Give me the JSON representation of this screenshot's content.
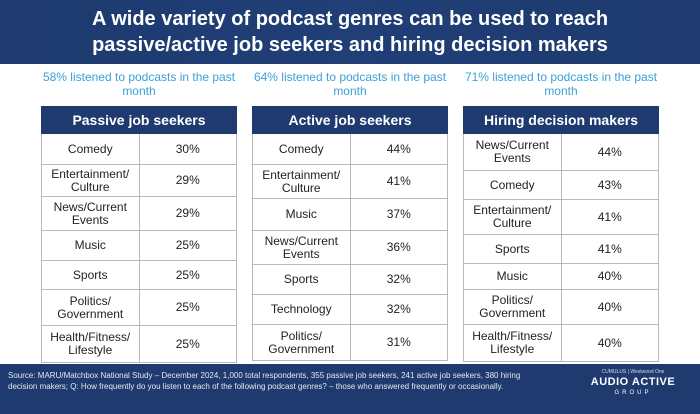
{
  "title_line1": "A wide variety of podcast genres can be used to reach",
  "title_line2": "passive/active job seekers and hiring decision makers",
  "chart_data": [
    {
      "type": "table",
      "subtitle": "58% listened to podcasts in the past month",
      "header": "Passive job seekers",
      "categories": [
        "Comedy",
        "Entertainment/ Culture",
        "News/Current Events",
        "Music",
        "Sports",
        "Politics/ Government",
        "Health/Fitness/ Lifestyle"
      ],
      "values": [
        30,
        29,
        29,
        25,
        25,
        25,
        25
      ],
      "value_labels": [
        "30%",
        "29%",
        "29%",
        "25%",
        "25%",
        "25%",
        "25%"
      ]
    },
    {
      "type": "table",
      "subtitle": "64% listened to podcasts in the past month",
      "header": "Active job seekers",
      "categories": [
        "Comedy",
        "Entertainment/ Culture",
        "Music",
        "News/Current Events",
        "Sports",
        "Technology",
        "Politics/ Government"
      ],
      "values": [
        44,
        41,
        37,
        36,
        32,
        32,
        31
      ],
      "value_labels": [
        "44%",
        "41%",
        "37%",
        "36%",
        "32%",
        "32%",
        "31%"
      ]
    },
    {
      "type": "table",
      "subtitle": "71% listened to podcasts in the past month",
      "header": "Hiring decision makers",
      "categories": [
        "News/Current Events",
        "Comedy",
        "Entertainment/ Culture",
        "Sports",
        "Music",
        "Politics/ Government",
        "Health/Fitness/ Lifestyle"
      ],
      "values": [
        44,
        43,
        41,
        41,
        40,
        40,
        40
      ],
      "value_labels": [
        "44%",
        "43%",
        "41%",
        "41%",
        "40%",
        "40%",
        "40%"
      ]
    }
  ],
  "footer": {
    "source_line1": "Source: MARU/Matchbox National Study – December 2024, 1,000 total respondents, 355 passive job seekers, 241 active job seekers, 380 hiring",
    "source_line2": "decision makers; Q: How frequently do you listen to each of the following podcast genres? – those who answered frequently or occasionally.",
    "logo_small": "CUMULUS | Westwood One",
    "logo_main": "AUDIO ACTIVE",
    "logo_sub": "GROUP"
  },
  "colors": {
    "banner": "#1e3a6e",
    "header": "#1e3a6e",
    "subtitle": "#3aa0d8",
    "border": "#b9b9b9"
  }
}
